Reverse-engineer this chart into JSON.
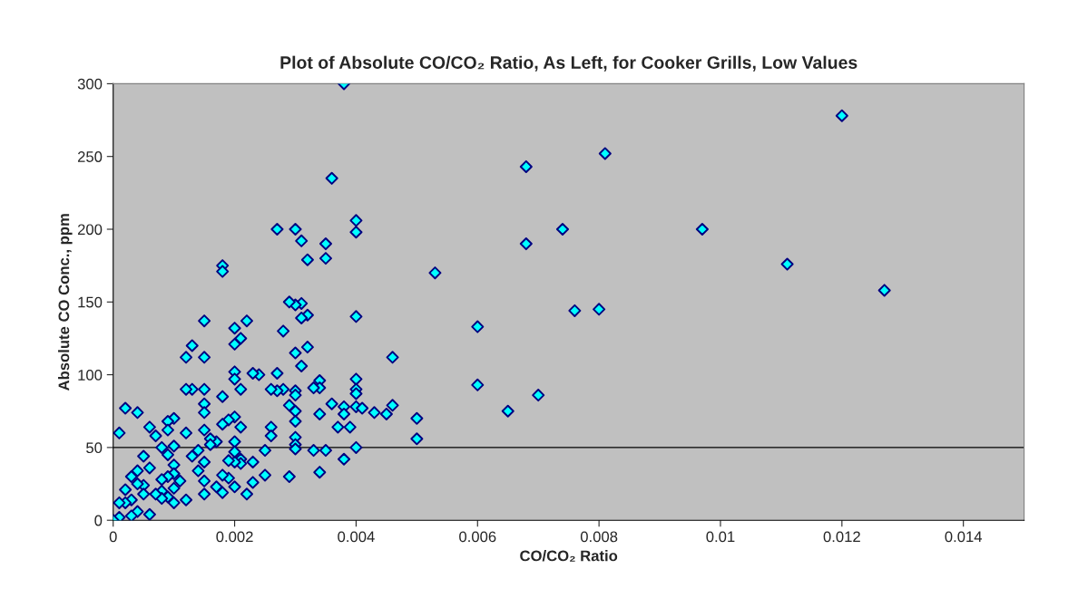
{
  "chart_data": {
    "type": "scatter",
    "title": "Plot of Absolute CO/CO₂ Ratio, As Left, for Cooker Grills, Low Values",
    "xlabel": "CO/CO₂ Ratio",
    "ylabel": "Absolute CO Conc., ppm",
    "xlim": [
      0,
      0.015
    ],
    "ylim": [
      0,
      300
    ],
    "xticks": [
      0,
      0.002,
      0.004,
      0.006,
      0.008,
      0.01,
      0.012,
      0.014
    ],
    "yticks": [
      0,
      50,
      100,
      150,
      200,
      250,
      300
    ],
    "grid": false,
    "legend": false,
    "marker": "diamond",
    "ref_lines": [
      {
        "axis": "y",
        "value": 50,
        "color": "#000000"
      }
    ],
    "series": [
      {
        "color": "#00ffff",
        "x": [
          0.0038,
          0.0036,
          0.0068,
          0.0081,
          0.012,
          0.0097,
          0.0111,
          0.0127,
          0.0074,
          0.0068,
          0.0053,
          0.0076,
          0.008,
          0.006,
          0.0046,
          0.006,
          0.007,
          0.0065,
          0.005,
          0.005,
          0.0046,
          0.0045,
          0.0043,
          0.004,
          0.004,
          0.004,
          0.004,
          0.004,
          0.004,
          0.004,
          0.0041,
          0.004,
          0.0038,
          0.0038,
          0.0038,
          0.0039,
          0.0037,
          0.0036,
          0.0035,
          0.0035,
          0.0034,
          0.0034,
          0.0034,
          0.0035,
          0.0034,
          0.0033,
          0.0033,
          0.0032,
          0.0032,
          0.0032,
          0.0031,
          0.0031,
          0.0031,
          0.0031,
          0.003,
          0.003,
          0.003,
          0.003,
          0.003,
          0.003,
          0.003,
          0.003,
          0.003,
          0.003,
          0.0029,
          0.0029,
          0.0029,
          0.0028,
          0.0028,
          0.0027,
          0.0027,
          0.0027,
          0.0026,
          0.0026,
          0.0026,
          0.0025,
          0.0025,
          0.0024,
          0.0023,
          0.0023,
          0.0023,
          0.0022,
          0.0022,
          0.0021,
          0.0021,
          0.0021,
          0.0021,
          0.0021,
          0.002,
          0.002,
          0.002,
          0.002,
          0.002,
          0.002,
          0.002,
          0.002,
          0.002,
          0.0019,
          0.0019,
          0.0019,
          0.0018,
          0.0018,
          0.0018,
          0.0018,
          0.0018,
          0.0018,
          0.0017,
          0.0017,
          0.0016,
          0.0016,
          0.0015,
          0.0015,
          0.0015,
          0.0015,
          0.0015,
          0.0015,
          0.0015,
          0.0015,
          0.0015,
          0.0014,
          0.0014,
          0.0013,
          0.0013,
          0.0013,
          0.0012,
          0.0012,
          0.0012,
          0.0012,
          0.0011,
          0.001,
          0.001,
          0.001,
          0.001,
          0.001,
          0.001,
          0.0009,
          0.0009,
          0.0009,
          0.0009,
          0.0009,
          0.0008,
          0.0008,
          0.0008,
          0.0008,
          0.0007,
          0.0007,
          0.0006,
          0.0006,
          0.0006,
          0.0005,
          0.0005,
          0.0005,
          0.0004,
          0.0004,
          0.0004,
          0.0004,
          0.0003,
          0.0003,
          0.0003,
          0.0002,
          0.0002,
          0.0002,
          0.0001,
          0.0001,
          0.0001,
          0
        ],
        "values": [
          300,
          235,
          243,
          252,
          278,
          200,
          176,
          158,
          200,
          190,
          170,
          144,
          145,
          133,
          112,
          93,
          86,
          75,
          70,
          56,
          79,
          73,
          74,
          206,
          198,
          140,
          97,
          90,
          87,
          78,
          77,
          50,
          78,
          73,
          42,
          64,
          64,
          80,
          190,
          180,
          96,
          91,
          73,
          48,
          33,
          91,
          48,
          179,
          141,
          119,
          192,
          149,
          139,
          106,
          200,
          148,
          115,
          89,
          86,
          75,
          68,
          57,
          52,
          49,
          150,
          79,
          30,
          130,
          90,
          200,
          101,
          89,
          90,
          64,
          58,
          48,
          31,
          100,
          101,
          40,
          26,
          137,
          18,
          125,
          90,
          64,
          42,
          39,
          132,
          121,
          102,
          97,
          71,
          54,
          47,
          40,
          23,
          69,
          41,
          29,
          175,
          171,
          85,
          66,
          31,
          19,
          54,
          23,
          56,
          52,
          137,
          112,
          90,
          80,
          74,
          62,
          40,
          27,
          18,
          48,
          34,
          120,
          90,
          44,
          112,
          90,
          60,
          14,
          27,
          70,
          51,
          38,
          32,
          22,
          12,
          68,
          62,
          45,
          30,
          16,
          50,
          28,
          20,
          15,
          58,
          18,
          64,
          36,
          4,
          44,
          24,
          18,
          74,
          34,
          25,
          6,
          30,
          14,
          3,
          77,
          21,
          12,
          60,
          12,
          2,
          0
        ]
      }
    ]
  }
}
